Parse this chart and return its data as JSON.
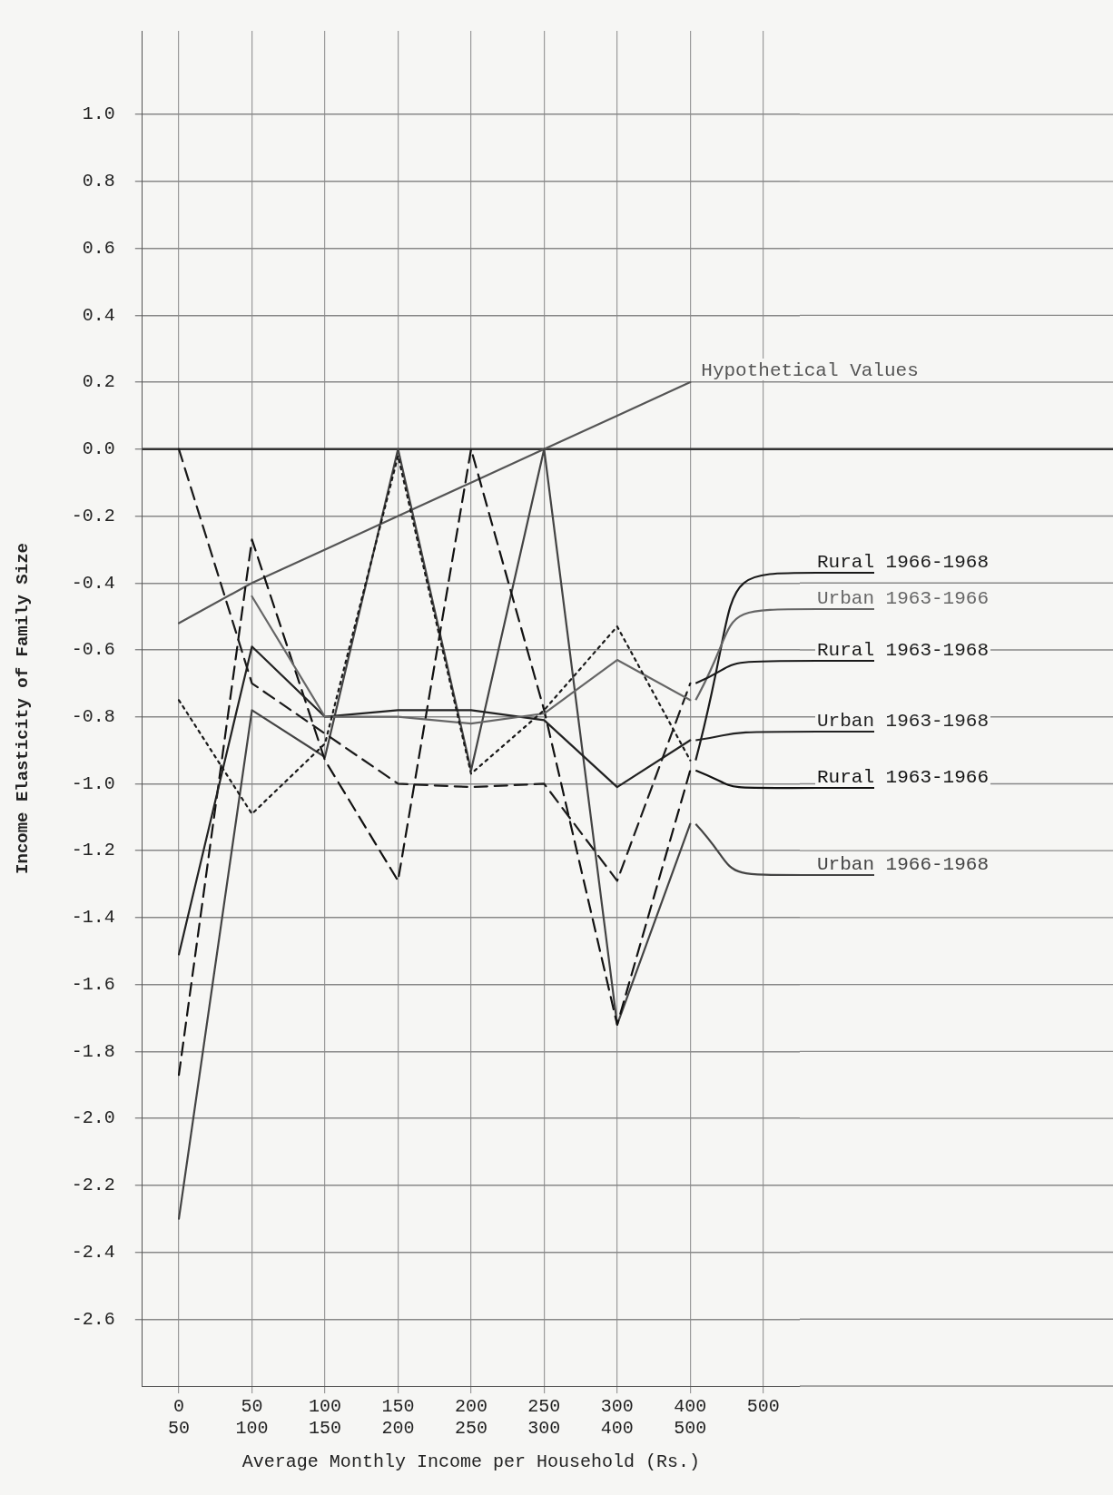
{
  "chart_data": {
    "type": "line",
    "xlabel": "Average Monthly Income per Household (Rs.)",
    "ylabel": "Income Elasticity of Family Size",
    "categories": [
      "0\n50",
      "50\n100",
      "100\n150",
      "150\n200",
      "200\n250",
      "250\n300",
      "300\n400",
      "400\n500",
      "500"
    ],
    "ylim": [
      -2.8,
      1.25
    ],
    "yticks": [
      {
        "value": 1,
        "label": "1.0"
      },
      {
        "value": 0.8,
        "label": "0.8"
      },
      {
        "value": 0.6,
        "label": "0.6"
      },
      {
        "value": 0.4,
        "label": "0.4"
      },
      {
        "value": 0.2,
        "label": "0.2"
      },
      {
        "value": 0,
        "label": "0.0"
      },
      {
        "value": -0.2,
        "label": "-0.2"
      },
      {
        "value": -0.4,
        "label": "-0.4"
      },
      {
        "value": -0.6,
        "label": "-0.6"
      },
      {
        "value": -0.8,
        "label": "-0.8"
      },
      {
        "value": -1,
        "label": "-1.0"
      },
      {
        "value": -1.2,
        "label": "-1.2"
      },
      {
        "value": -1.4,
        "label": "-1.4"
      },
      {
        "value": -1.6,
        "label": "-1.6"
      },
      {
        "value": -1.8,
        "label": "-1.8"
      },
      {
        "value": -2,
        "label": "-2.0"
      },
      {
        "value": -2.2,
        "label": "-2.2"
      },
      {
        "value": -2.4,
        "label": "-2.4"
      },
      {
        "value": -2.6,
        "label": "-2.6"
      }
    ],
    "grid": true,
    "marker": "none",
    "legend": false,
    "ref_lines": [
      {
        "axis": "y",
        "value": 0,
        "color": "#333333"
      }
    ],
    "series": [
      {
        "name": "Rural 1966-1968",
        "color": "#1a1a1a",
        "line_style": "dotted",
        "values": [
          -0.75,
          -1.09,
          -0.88,
          -0.02,
          -0.97,
          -0.78,
          -0.53,
          -0.93,
          null
        ]
      },
      {
        "name": "Urban 1963-1966",
        "color": "#666666",
        "line_style": "solid",
        "values": [
          null,
          -0.44,
          -0.8,
          -0.8,
          -0.82,
          -0.79,
          -0.63,
          -0.75,
          null
        ]
      },
      {
        "name": "Rural 1963-1968",
        "color": "#1a1a1a",
        "line_style": "dashed",
        "values": [
          0,
          -0.7,
          -0.85,
          -1,
          -1.01,
          -1,
          -1.29,
          -0.7,
          null
        ]
      },
      {
        "name": "Urban 1963-1968",
        "color": "#222222",
        "line_style": "solid",
        "values": [
          -1.51,
          -0.59,
          -0.8,
          -0.78,
          -0.78,
          -0.81,
          -1.01,
          -0.87,
          null
        ]
      },
      {
        "name": "Rural 1963-1966",
        "color": "#111111",
        "line_style": "dashed",
        "values": [
          -1.87,
          -0.27,
          -0.93,
          -1.29,
          0,
          -0.78,
          -1.72,
          -0.96,
          null
        ]
      },
      {
        "name": "Urban 1966-1968",
        "color": "#444444",
        "line_style": "solid",
        "values": [
          -2.3,
          -0.78,
          -0.92,
          0,
          -0.96,
          0,
          -1.72,
          -1.12,
          null
        ]
      },
      {
        "name": "Hypothetical Values",
        "color": "#555555",
        "line_style": "solid",
        "values": [
          -0.52,
          -0.4,
          -0.3,
          -0.2,
          -0.1,
          0,
          0.1,
          0.2,
          null
        ]
      }
    ]
  }
}
